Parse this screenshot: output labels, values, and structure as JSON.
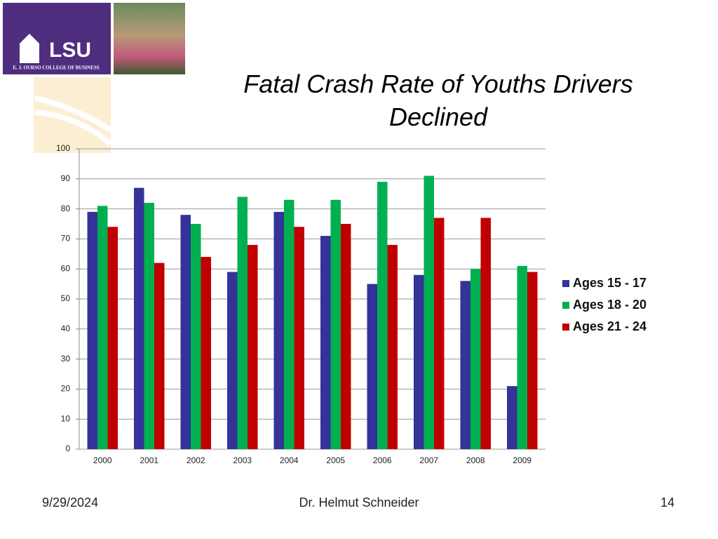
{
  "logo": {
    "name": "LSU",
    "subtitle": "E. J. OURSO COLLEGE OF BUSINESS"
  },
  "chart_data": {
    "type": "bar",
    "title": "Fatal Crash Rate of Youths Drivers Declined",
    "categories": [
      "2000",
      "2001",
      "2002",
      "2003",
      "2004",
      "2005",
      "2006",
      "2007",
      "2008",
      "2009"
    ],
    "series": [
      {
        "name": "Ages 15 - 17",
        "color": "#333399",
        "values": [
          79,
          87,
          78,
          59,
          79,
          71,
          55,
          58,
          56,
          21
        ]
      },
      {
        "name": "Ages 18 - 20",
        "color": "#00b050",
        "values": [
          81,
          82,
          75,
          84,
          83,
          83,
          89,
          91,
          60,
          61
        ]
      },
      {
        "name": "Ages 21 - 24",
        "color": "#c00000",
        "values": [
          74,
          62,
          64,
          68,
          74,
          75,
          68,
          77,
          77,
          59
        ]
      }
    ],
    "ylim": [
      0,
      100
    ],
    "yticks": [
      0,
      10,
      20,
      30,
      40,
      50,
      60,
      70,
      80,
      90,
      100
    ],
    "grid": true,
    "legend": "right"
  },
  "footer": {
    "date": "9/29/2024",
    "author": "Dr. Helmut Schneider",
    "page": "14"
  }
}
